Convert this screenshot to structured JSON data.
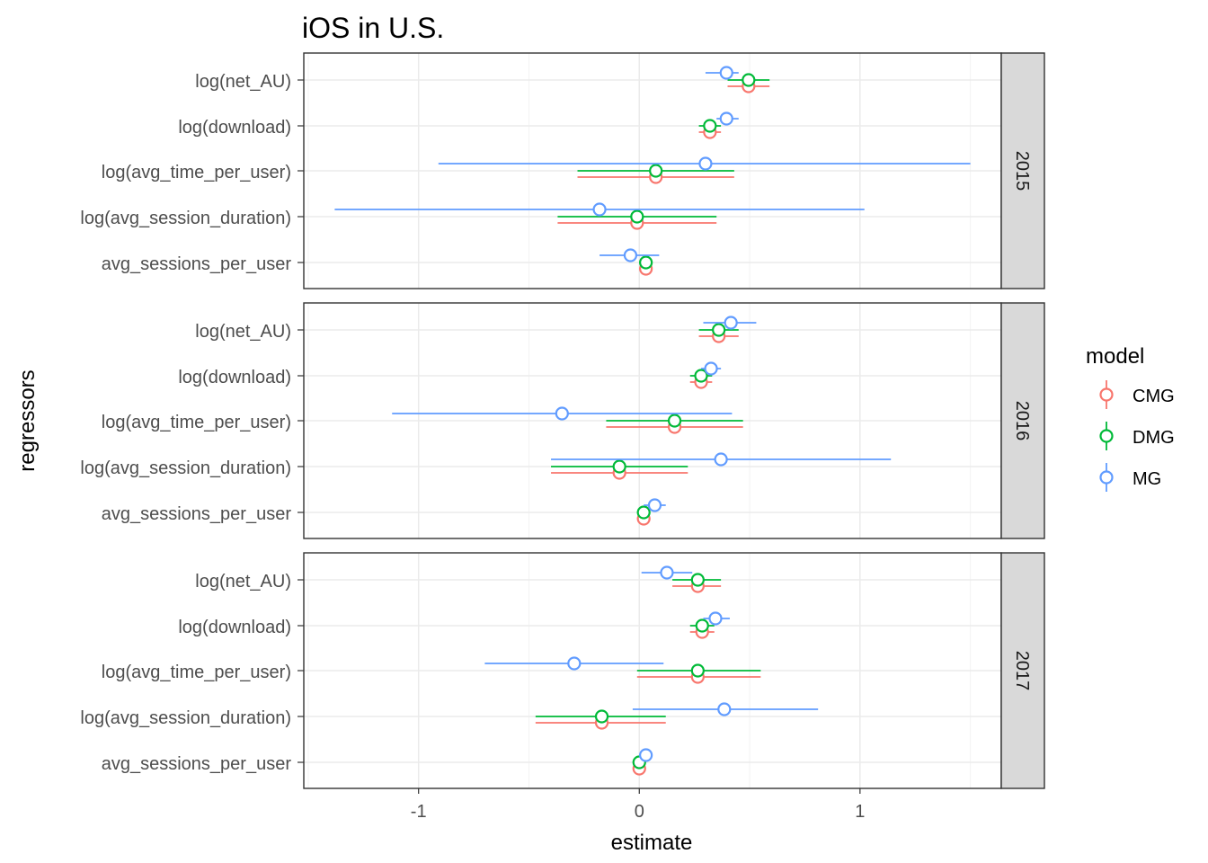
{
  "chart_data": {
    "type": "scatter",
    "title": "iOS in U.S.",
    "xlabel": "estimate",
    "ylabel": "regressors",
    "xlim": [
      -1.52,
      1.64
    ],
    "x_ticks": [
      -1,
      0,
      1
    ],
    "x_tick_labels": [
      "-1",
      "0",
      "1"
    ],
    "grid": true,
    "legend": {
      "title": "model",
      "position": "right"
    },
    "categories": [
      "log(net_AU)",
      "log(download)",
      "log(avg_time_per_user)",
      "log(avg_session_duration)",
      "avg_sessions_per_user"
    ],
    "series": [
      {
        "name": "CMG",
        "color": "#F8766D"
      },
      {
        "name": "DMG",
        "color": "#00BA38"
      },
      {
        "name": "MG",
        "color": "#619CFF"
      }
    ],
    "panels": [
      {
        "label": "2015",
        "points": {
          "CMG": [
            {
              "est": 0.495,
              "lo": 0.4,
              "hi": 0.59
            },
            {
              "est": 0.32,
              "lo": 0.27,
              "hi": 0.37
            },
            {
              "est": 0.075,
              "lo": -0.28,
              "hi": 0.43
            },
            {
              "est": -0.01,
              "lo": -0.37,
              "hi": 0.35
            },
            {
              "est": 0.03,
              "lo": 0.0,
              "hi": 0.06
            }
          ],
          "DMG": [
            {
              "est": 0.495,
              "lo": 0.4,
              "hi": 0.59
            },
            {
              "est": 0.32,
              "lo": 0.27,
              "hi": 0.37
            },
            {
              "est": 0.075,
              "lo": -0.28,
              "hi": 0.43
            },
            {
              "est": -0.01,
              "lo": -0.37,
              "hi": 0.35
            },
            {
              "est": 0.03,
              "lo": 0.0,
              "hi": 0.06
            }
          ],
          "MG": [
            {
              "est": 0.395,
              "lo": 0.3,
              "hi": 0.45
            },
            {
              "est": 0.395,
              "lo": 0.35,
              "hi": 0.45
            },
            {
              "est": 0.3,
              "lo": -0.91,
              "hi": 1.5
            },
            {
              "est": -0.18,
              "lo": -1.38,
              "hi": 1.02
            },
            {
              "est": -0.04,
              "lo": -0.18,
              "hi": 0.09
            }
          ]
        }
      },
      {
        "label": "2016",
        "points": {
          "CMG": [
            {
              "est": 0.36,
              "lo": 0.27,
              "hi": 0.45
            },
            {
              "est": 0.28,
              "lo": 0.23,
              "hi": 0.33
            },
            {
              "est": 0.16,
              "lo": -0.15,
              "hi": 0.47
            },
            {
              "est": -0.09,
              "lo": -0.4,
              "hi": 0.22
            },
            {
              "est": 0.02,
              "lo": -0.01,
              "hi": 0.05
            }
          ],
          "DMG": [
            {
              "est": 0.36,
              "lo": 0.27,
              "hi": 0.45
            },
            {
              "est": 0.28,
              "lo": 0.23,
              "hi": 0.33
            },
            {
              "est": 0.16,
              "lo": -0.15,
              "hi": 0.47
            },
            {
              "est": -0.09,
              "lo": -0.4,
              "hi": 0.22
            },
            {
              "est": 0.02,
              "lo": -0.01,
              "hi": 0.05
            }
          ],
          "MG": [
            {
              "est": 0.415,
              "lo": 0.29,
              "hi": 0.53
            },
            {
              "est": 0.325,
              "lo": 0.28,
              "hi": 0.37
            },
            {
              "est": -0.35,
              "lo": -1.12,
              "hi": 0.42
            },
            {
              "est": 0.37,
              "lo": -0.4,
              "hi": 1.14
            },
            {
              "est": 0.07,
              "lo": 0.02,
              "hi": 0.12
            }
          ]
        }
      },
      {
        "label": "2017",
        "points": {
          "CMG": [
            {
              "est": 0.265,
              "lo": 0.15,
              "hi": 0.37
            },
            {
              "est": 0.285,
              "lo": 0.23,
              "hi": 0.34
            },
            {
              "est": 0.265,
              "lo": -0.01,
              "hi": 0.55
            },
            {
              "est": -0.17,
              "lo": -0.47,
              "hi": 0.12
            },
            {
              "est": 0.0,
              "lo": -0.03,
              "hi": 0.03
            }
          ],
          "DMG": [
            {
              "est": 0.265,
              "lo": 0.15,
              "hi": 0.37
            },
            {
              "est": 0.285,
              "lo": 0.23,
              "hi": 0.34
            },
            {
              "est": 0.265,
              "lo": -0.01,
              "hi": 0.55
            },
            {
              "est": -0.17,
              "lo": -0.47,
              "hi": 0.12
            },
            {
              "est": 0.0,
              "lo": -0.03,
              "hi": 0.03
            }
          ],
          "MG": [
            {
              "est": 0.125,
              "lo": 0.01,
              "hi": 0.24
            },
            {
              "est": 0.345,
              "lo": 0.29,
              "hi": 0.41
            },
            {
              "est": -0.295,
              "lo": -0.7,
              "hi": 0.11
            },
            {
              "est": 0.385,
              "lo": -0.03,
              "hi": 0.81
            },
            {
              "est": 0.03,
              "lo": 0.0,
              "hi": 0.06
            }
          ]
        }
      }
    ]
  }
}
